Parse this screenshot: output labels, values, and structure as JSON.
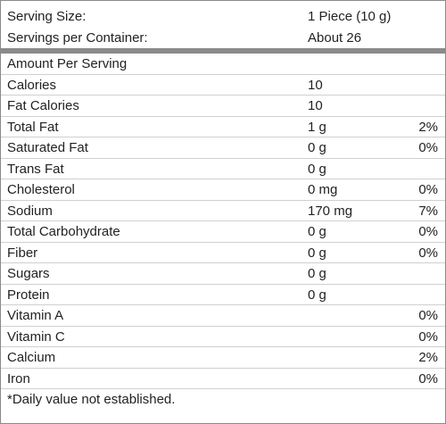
{
  "serving": [
    {
      "label": "Serving Size:",
      "value": "1 Piece (10 g)"
    },
    {
      "label": "Servings per Container:",
      "value": "About 26"
    }
  ],
  "amount_heading": "Amount Per Serving",
  "rows": [
    {
      "label": "Calories",
      "amount": "10"
    },
    {
      "label": "Fat Calories",
      "amount": "10"
    },
    {
      "label": "Total Fat",
      "amount": "1 g",
      "dv": "2%"
    },
    {
      "label": "Saturated Fat",
      "amount": "0 g",
      "dv": "0%"
    },
    {
      "label": "Trans Fat",
      "amount": "0 g"
    },
    {
      "label": "Cholesterol",
      "amount": "0 mg",
      "dv": "0%"
    },
    {
      "label": "Sodium",
      "amount": "170 mg",
      "dv": "7%"
    },
    {
      "label": "Total Carbohydrate",
      "amount": "0 g",
      "dv": "0%"
    },
    {
      "label": "Fiber",
      "amount": "0 g",
      "dv": "0%"
    },
    {
      "label": "Sugars",
      "amount": "0 g"
    },
    {
      "label": "Protein",
      "amount": "0 g"
    },
    {
      "label": "Vitamin A",
      "dv": "0%"
    },
    {
      "label": "Vitamin C",
      "dv": "0%"
    },
    {
      "label": "Calcium",
      "dv": "2%"
    },
    {
      "label": "Iron",
      "dv": "0%"
    }
  ],
  "footnote": "*Daily value not established."
}
